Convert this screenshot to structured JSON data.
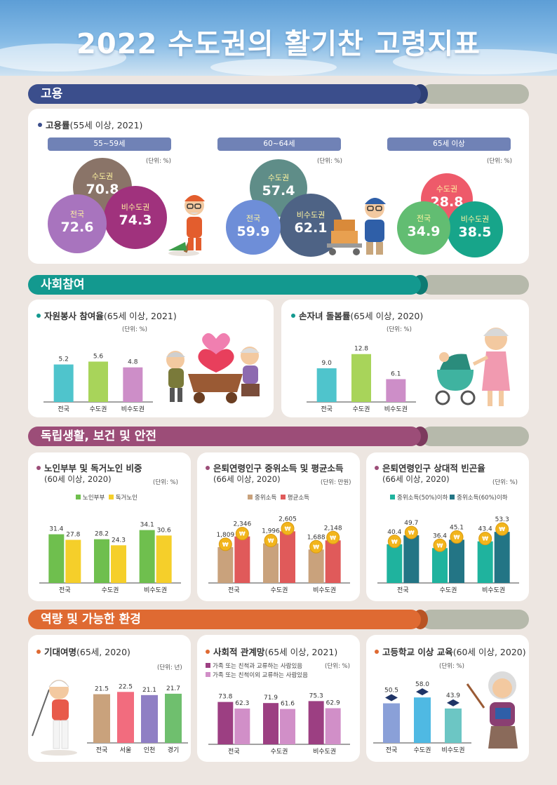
{
  "title": "2022 수도권의 활기찬 고령지표",
  "colors": {
    "employment": "#3b4e8c",
    "social": "#13998f",
    "independence": "#9c4d78",
    "capacity": "#df6a32"
  },
  "sections": {
    "employment": "고용",
    "social": "사회참여",
    "independence": "독립생활, 보건 및 안전",
    "capacity": "역량 및 가능한 환경"
  },
  "employment_panel": {
    "title": "고용률",
    "subtitle": "(55세 이상, 2021)",
    "unit": "(단위: %)",
    "groups": [
      {
        "age": "55~59세",
        "items": [
          {
            "label": "수도권",
            "value": "70.8"
          },
          {
            "label": "전국",
            "value": "72.6"
          },
          {
            "label": "비수도권",
            "value": "74.3"
          }
        ]
      },
      {
        "age": "60~64세",
        "items": [
          {
            "label": "수도권",
            "value": "57.4"
          },
          {
            "label": "전국",
            "value": "59.9"
          },
          {
            "label": "비수도권",
            "value": "62.1"
          }
        ]
      },
      {
        "age": "65세 이상",
        "items": [
          {
            "label": "수도권",
            "value": "28.8"
          },
          {
            "label": "전국",
            "value": "34.9"
          },
          {
            "label": "비수도권",
            "value": "38.5"
          }
        ]
      }
    ]
  },
  "volunteer": {
    "title": "자원봉사 참여율",
    "subtitle": "(65세 이상, 2021)",
    "unit": "(단위: %)"
  },
  "childcare": {
    "title": "손자녀 돌봄률",
    "subtitle": "(65세 이상, 2020)",
    "unit": "(단위: %)"
  },
  "elderly_living": {
    "title": "노인부부 및 독거노인 비중",
    "subtitle": "(60세 이상, 2020)",
    "unit": "(단위: %)"
  },
  "retired_income": {
    "title": "은퇴연령인구 중위소득 및 평균소득",
    "subtitle": "(66세 이상, 2020)",
    "unit": "(단위: 만원)"
  },
  "poverty": {
    "title": "은퇴연령인구 상대적 빈곤율",
    "subtitle": "(66세 이상, 2020)",
    "unit": "(단위: %)"
  },
  "life_expectancy": {
    "title": "기대여명",
    "subtitle": "(65세, 2020)",
    "unit": "(단위: 년)"
  },
  "social_network": {
    "title": "사회적 관계망",
    "subtitle": "(65세 이상, 2021)",
    "unit": "(단위: %)"
  },
  "education": {
    "title": "고등학교 이상 교육",
    "subtitle": "(60세 이상, 2020)",
    "unit": "(단위: %)"
  },
  "chart_data": [
    {
      "id": "volunteer",
      "type": "bar",
      "categories": [
        "전국",
        "수도권",
        "비수도권"
      ],
      "values": [
        5.2,
        5.6,
        4.8
      ],
      "colors": [
        "#4fc4cc",
        "#a8d45a",
        "#cd8ec8"
      ]
    },
    {
      "id": "childcare",
      "type": "bar",
      "categories": [
        "전국",
        "수도권",
        "비수도권"
      ],
      "values": [
        9.0,
        12.8,
        6.1
      ],
      "colors": [
        "#4fc4cc",
        "#a8d45a",
        "#cd8ec8"
      ]
    },
    {
      "id": "elderly_living",
      "type": "bar",
      "categories": [
        "전국",
        "수도권",
        "비수도권"
      ],
      "series": [
        {
          "name": "노인부부",
          "values": [
            31.4,
            28.2,
            34.1
          ],
          "color": "#6fbf4e"
        },
        {
          "name": "독거노인",
          "values": [
            27.8,
            24.3,
            30.6
          ],
          "color": "#f5cf2a"
        }
      ]
    },
    {
      "id": "retired_income",
      "type": "bar",
      "categories": [
        "전국",
        "수도권",
        "비수도권"
      ],
      "series": [
        {
          "name": "중위소득",
          "values": [
            1809,
            1996,
            1688
          ],
          "color": "#c9a27c"
        },
        {
          "name": "평균소득",
          "values": [
            2346,
            2605,
            2148
          ],
          "color": "#e05a5a"
        }
      ]
    },
    {
      "id": "poverty",
      "type": "bar",
      "categories": [
        "전국",
        "수도권",
        "비수도권"
      ],
      "series": [
        {
          "name": "중위소득(50%)이하",
          "values": [
            40.4,
            36.4,
            43.4
          ],
          "color": "#1fb39e"
        },
        {
          "name": "중위소득(60%)이하",
          "values": [
            49.7,
            45.1,
            53.3
          ],
          "color": "#237585"
        }
      ]
    },
    {
      "id": "life_expectancy",
      "type": "bar",
      "categories": [
        "전국",
        "서울",
        "인천",
        "경기"
      ],
      "values": [
        21.5,
        22.5,
        21.1,
        21.7
      ],
      "colors": [
        "#c9a27c",
        "#f26c7e",
        "#8f7fc4",
        "#6fbf6e"
      ]
    },
    {
      "id": "social_network",
      "type": "bar",
      "categories": [
        "전국",
        "수도권",
        "비수도권"
      ],
      "series": [
        {
          "name": "가족 또는 친척과 교류하는 사람있음",
          "values": [
            73.8,
            71.9,
            75.3
          ],
          "color": "#9c3f82"
        },
        {
          "name": "가족 또는 친척이외 교류하는 사람있음",
          "values": [
            62.3,
            61.6,
            62.9
          ],
          "color": "#d18fc8"
        }
      ]
    },
    {
      "id": "education",
      "type": "bar",
      "categories": [
        "전국",
        "수도권",
        "비수도권"
      ],
      "values": [
        50.5,
        58.0,
        43.9
      ],
      "colors": [
        "#8aa0d8",
        "#4fb9e3",
        "#6cc6c4"
      ]
    }
  ]
}
